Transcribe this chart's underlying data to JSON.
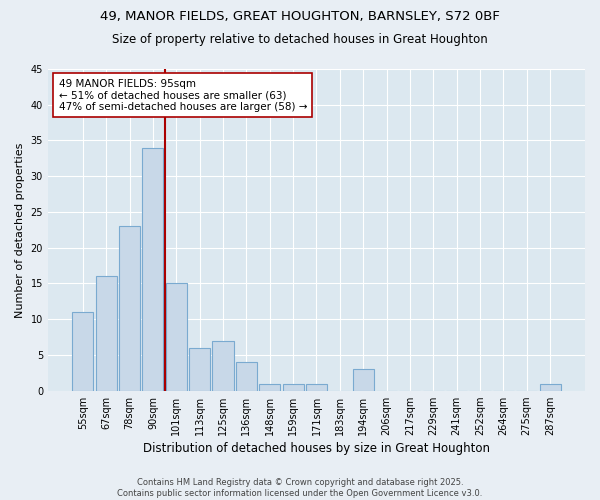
{
  "title1": "49, MANOR FIELDS, GREAT HOUGHTON, BARNSLEY, S72 0BF",
  "title2": "Size of property relative to detached houses in Great Houghton",
  "xlabel": "Distribution of detached houses by size in Great Houghton",
  "ylabel": "Number of detached properties",
  "categories": [
    "55sqm",
    "67sqm",
    "78sqm",
    "90sqm",
    "101sqm",
    "113sqm",
    "125sqm",
    "136sqm",
    "148sqm",
    "159sqm",
    "171sqm",
    "183sqm",
    "194sqm",
    "206sqm",
    "217sqm",
    "229sqm",
    "241sqm",
    "252sqm",
    "264sqm",
    "275sqm",
    "287sqm"
  ],
  "values": [
    11,
    16,
    23,
    34,
    15,
    6,
    7,
    4,
    1,
    1,
    1,
    0,
    3,
    0,
    0,
    0,
    0,
    0,
    0,
    0,
    1
  ],
  "bar_color": "#c8d8e8",
  "bar_edge_color": "#7aaad0",
  "vertical_line_color": "#aa0000",
  "annotation_text": "49 MANOR FIELDS: 95sqm\n← 51% of detached houses are smaller (63)\n47% of semi-detached houses are larger (58) →",
  "annotation_box_color": "white",
  "annotation_box_edge_color": "#aa0000",
  "ylim": [
    0,
    45
  ],
  "yticks": [
    0,
    5,
    10,
    15,
    20,
    25,
    30,
    35,
    40,
    45
  ],
  "background_color": "#e8eef4",
  "plot_background_color": "#dce8f0",
  "grid_color": "#ffffff",
  "footer": "Contains HM Land Registry data © Crown copyright and database right 2025.\nContains public sector information licensed under the Open Government Licence v3.0."
}
